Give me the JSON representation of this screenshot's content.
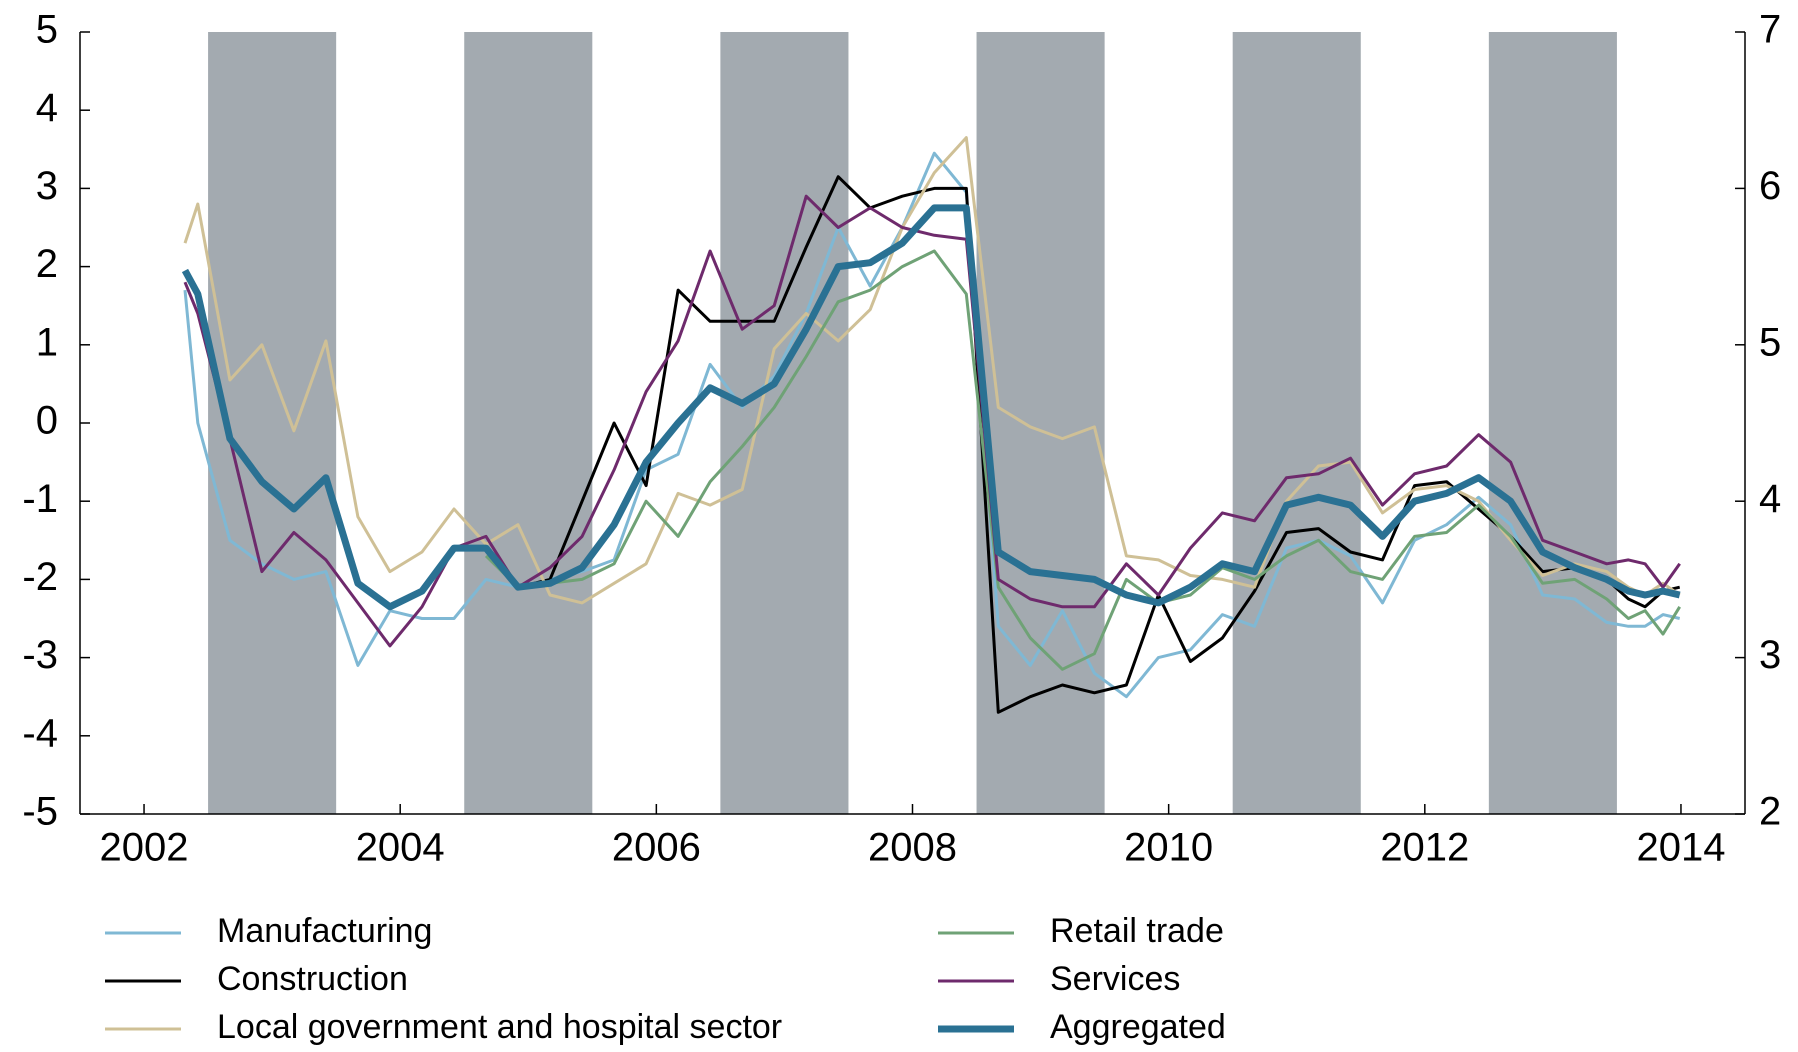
{
  "chart_data": {
    "type": "line",
    "x": [
      2002.82,
      2002.92,
      2003.17,
      2003.42,
      2003.67,
      2003.92,
      2004.17,
      2004.42,
      2004.67,
      2004.92,
      2005.17,
      2005.42,
      2005.67,
      2005.92,
      2006.17,
      2006.42,
      2006.67,
      2006.92,
      2007.17,
      2007.42,
      2007.67,
      2007.92,
      2008.17,
      2008.42,
      2008.67,
      2008.92,
      2009.17,
      2009.42,
      2009.67,
      2009.92,
      2010.17,
      2010.42,
      2010.67,
      2010.92,
      2011.17,
      2011.42,
      2011.67,
      2011.92,
      2012.17,
      2012.42,
      2012.67,
      2012.92,
      2013.17,
      2013.42,
      2013.67,
      2013.92,
      2014.09,
      2014.22,
      2014.36,
      2014.49
    ],
    "series": [
      {
        "name": "Manufacturing",
        "color": "#7fb8d4",
        "width": 3,
        "values": [
          1.7,
          0.0,
          -1.5,
          -1.8,
          -2.0,
          -1.9,
          -3.1,
          -2.4,
          -2.5,
          -2.5,
          -2.0,
          -2.1,
          -2.0,
          -1.9,
          -1.75,
          -0.6,
          -0.4,
          0.75,
          0.2,
          0.6,
          1.4,
          2.5,
          1.75,
          2.5,
          3.45,
          2.95,
          -2.6,
          -3.1,
          -2.4,
          -3.2,
          -3.5,
          -3.0,
          -2.9,
          -2.45,
          -2.6,
          -1.6,
          -1.5,
          -1.7,
          -2.3,
          -1.5,
          -1.3,
          -0.95,
          -1.3,
          -2.2,
          -2.25,
          -2.55,
          -2.6,
          -2.6,
          -2.45,
          -2.5
        ]
      },
      {
        "name": "Construction",
        "color": "#000000",
        "width": 3,
        "values": [
          null,
          null,
          null,
          null,
          null,
          null,
          null,
          null,
          null,
          null,
          -1.6,
          -2.1,
          -2.0,
          -1.0,
          0.0,
          -0.8,
          1.7,
          1.3,
          1.3,
          1.3,
          2.25,
          3.15,
          2.75,
          2.9,
          3.0,
          3.0,
          -3.7,
          -3.5,
          -3.35,
          -3.45,
          -3.35,
          -2.2,
          -3.05,
          -2.75,
          -2.15,
          -1.4,
          -1.35,
          -1.65,
          -1.75,
          -0.8,
          -0.75,
          -1.1,
          -1.45,
          -1.9,
          -1.85,
          -2.0,
          -2.25,
          -2.35,
          -2.15,
          -2.1
        ]
      },
      {
        "name": "Local government and hospital sector",
        "color": "#cfc096",
        "width": 3,
        "values": [
          2.3,
          2.8,
          0.55,
          1.0,
          -0.1,
          1.05,
          -1.2,
          -1.9,
          -1.65,
          -1.1,
          -1.55,
          -1.3,
          -2.2,
          -2.3,
          -2.05,
          -1.8,
          -0.9,
          -1.05,
          -0.85,
          0.95,
          1.4,
          1.05,
          1.45,
          2.5,
          3.2,
          3.65,
          0.2,
          -0.05,
          -0.2,
          -0.05,
          -1.7,
          -1.75,
          -1.95,
          -2.0,
          -2.1,
          -1.0,
          -0.55,
          -0.5,
          -1.15,
          -0.85,
          -0.8,
          -1.0,
          -1.5,
          -1.95,
          -1.8,
          -1.9,
          -2.1,
          -2.2,
          -2.05,
          -2.2
        ]
      },
      {
        "name": "Retail trade",
        "color": "#6fa276",
        "width": 3,
        "values": [
          null,
          null,
          null,
          null,
          null,
          null,
          null,
          null,
          null,
          null,
          -1.7,
          -2.1,
          -2.05,
          -2.0,
          -1.8,
          -1.0,
          -1.45,
          -0.75,
          -0.3,
          0.2,
          0.85,
          1.55,
          1.7,
          2.0,
          2.2,
          1.65,
          -2.1,
          -2.75,
          -3.15,
          -2.95,
          -2.0,
          -2.3,
          -2.2,
          -1.85,
          -2.0,
          -1.7,
          -1.5,
          -1.9,
          -2.0,
          -1.45,
          -1.4,
          -1.05,
          -1.45,
          -2.05,
          -2.0,
          -2.25,
          -2.5,
          -2.4,
          -2.7,
          -2.35
        ]
      },
      {
        "name": "Services",
        "color": "#6e2a6c",
        "width": 3,
        "values": [
          1.8,
          1.4,
          -0.2,
          -1.9,
          -1.4,
          -1.75,
          -2.3,
          -2.85,
          -2.35,
          -1.6,
          -1.45,
          -2.1,
          -1.85,
          -1.45,
          -0.6,
          0.4,
          1.05,
          2.2,
          1.2,
          1.5,
          2.9,
          2.5,
          2.75,
          2.5,
          2.4,
          2.35,
          -2.0,
          -2.25,
          -2.35,
          -2.35,
          -1.8,
          -2.2,
          -1.6,
          -1.15,
          -1.25,
          -0.7,
          -0.65,
          -0.45,
          -1.05,
          -0.65,
          -0.55,
          -0.15,
          -0.5,
          -1.5,
          -1.65,
          -1.8,
          -1.75,
          -1.8,
          -2.1,
          -1.8
        ]
      },
      {
        "name": "Aggregated",
        "color": "#2a7193",
        "width": 7,
        "values": [
          1.95,
          1.65,
          -0.2,
          -0.75,
          -1.1,
          -0.7,
          -2.05,
          -2.35,
          -2.15,
          -1.6,
          -1.6,
          -2.1,
          -2.05,
          -1.85,
          -1.3,
          -0.5,
          0.0,
          0.45,
          0.25,
          0.5,
          1.2,
          2.0,
          2.05,
          2.3,
          2.75,
          2.75,
          -1.65,
          -1.9,
          -1.95,
          -2.0,
          -2.2,
          -2.3,
          -2.1,
          -1.8,
          -1.9,
          -1.05,
          -0.95,
          -1.05,
          -1.45,
          -1.0,
          -0.9,
          -0.7,
          -1.0,
          -1.65,
          -1.85,
          -2.0,
          -2.15,
          -2.2,
          -2.15,
          -2.2
        ]
      }
    ],
    "xlim": [
      2002,
      2015
    ],
    "xticks": [
      {
        "value": 2002.5,
        "label": "2002"
      },
      {
        "value": 2004.5,
        "label": "2004"
      },
      {
        "value": 2006.5,
        "label": "2006"
      },
      {
        "value": 2008.5,
        "label": "2008"
      },
      {
        "value": 2010.5,
        "label": "2010"
      },
      {
        "value": 2012.5,
        "label": "2012"
      },
      {
        "value": 2014.5,
        "label": "2014"
      }
    ],
    "ylim": [
      -5,
      5
    ],
    "yticks": [
      -5,
      -4,
      -3,
      -2,
      -1,
      0,
      1,
      2,
      3,
      4,
      5
    ],
    "y2lim": [
      2,
      7
    ],
    "y2ticks": [
      2,
      3,
      4,
      5,
      6,
      7
    ],
    "shade_color": "#a3aab0"
  }
}
